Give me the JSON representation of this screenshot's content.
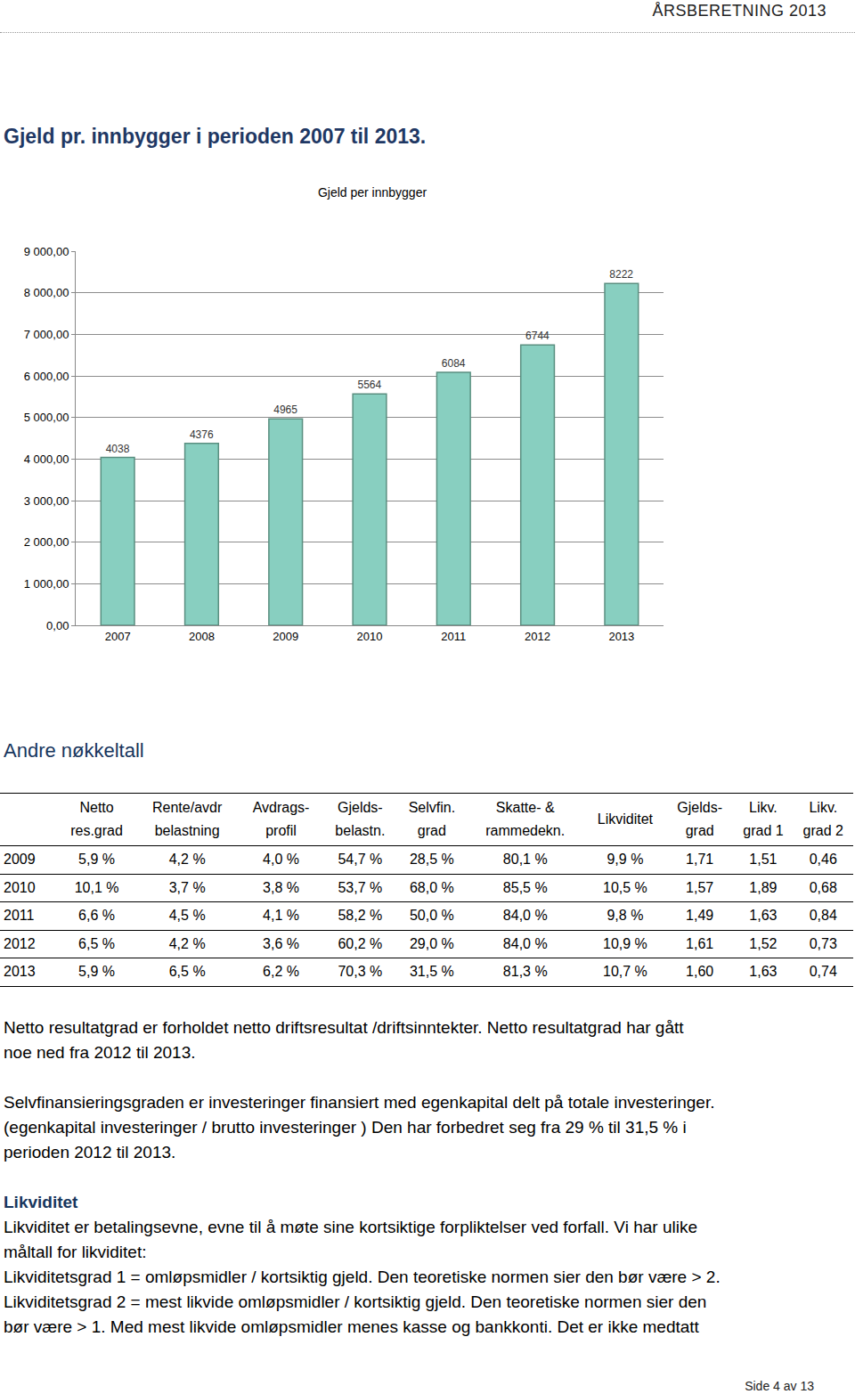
{
  "header": {
    "title": "ÅRSBERETNING 2013"
  },
  "heading": "Gjeld pr. innbygger i perioden 2007 til 2013.",
  "chart_data": {
    "type": "bar",
    "title": "Gjeld per innbygger",
    "categories": [
      "2007",
      "2008",
      "2009",
      "2010",
      "2011",
      "2012",
      "2013"
    ],
    "values": [
      4038,
      4376,
      4965,
      5564,
      6084,
      6744,
      8222
    ],
    "color": "#88cfc0",
    "ylim": [
      0,
      9000
    ],
    "yticks": [
      {
        "value": 0,
        "label": "0,00"
      },
      {
        "value": 1000,
        "label": "1 000,00"
      },
      {
        "value": 2000,
        "label": "2 000,00"
      },
      {
        "value": 3000,
        "label": "3 000,00"
      },
      {
        "value": 4000,
        "label": "4 000,00"
      },
      {
        "value": 5000,
        "label": "5 000,00"
      },
      {
        "value": 6000,
        "label": "6 000,00"
      },
      {
        "value": 7000,
        "label": "7 000,00"
      },
      {
        "value": 8000,
        "label": "8 000,00"
      },
      {
        "value": 9000,
        "label": "9 000,00"
      }
    ],
    "grid": true,
    "data_labels": true
  },
  "section": "Andre nøkkeltall",
  "table": {
    "columns": [
      [
        "Netto",
        "res.grad"
      ],
      [
        "Rente/avdr",
        "belastning"
      ],
      [
        "Avdrags-",
        "profil"
      ],
      [
        "Gjelds-",
        "belastn."
      ],
      [
        "Selvfin.",
        "grad"
      ],
      [
        "Skatte- &",
        "rammedekn."
      ],
      [
        "Likviditet"
      ],
      [
        "Gjelds-",
        "grad"
      ],
      [
        "Likv.",
        "grad 1"
      ],
      [
        "Likv.",
        "grad 2"
      ]
    ],
    "rows": [
      [
        "2009",
        "5,9 %",
        "4,2 %",
        "4,0 %",
        "54,7 %",
        "28,5 %",
        "80,1 %",
        "9,9 %",
        "1,71",
        "1,51",
        "0,46"
      ],
      [
        "2010",
        "10,1 %",
        "3,7 %",
        "3,8 %",
        "53,7 %",
        "68,0 %",
        "85,5 %",
        "10,5 %",
        "1,57",
        "1,89",
        "0,68"
      ],
      [
        "2011",
        "6,6 %",
        "4,5 %",
        "4,1 %",
        "58,2 %",
        "50,0 %",
        "84,0 %",
        "9,8 %",
        "1,49",
        "1,63",
        "0,84"
      ],
      [
        "2012",
        "6,5 %",
        "4,2 %",
        "3,6 %",
        "60,2 %",
        "29,0 %",
        "84,0 %",
        "10,9 %",
        "1,61",
        "1,52",
        "0,73"
      ],
      [
        "2013",
        "5,9 %",
        "6,5 %",
        "6,2 %",
        "70,3 %",
        "31,5 %",
        "81,3 %",
        "10,7 %",
        "1,60",
        "1,63",
        "0,74"
      ]
    ]
  },
  "paragraphs": [
    {
      "style": "text",
      "lines": [
        "Netto resultatgrad er forholdet netto driftsresultat /driftsinntekter. Netto resultatgrad har gått",
        "noe ned fra 2012 til 2013."
      ]
    },
    {
      "style": "text",
      "lines": [
        "Selvfinansieringsgraden er investeringer finansiert med egenkapital delt på totale investeringer.",
        "(egenkapital investeringer / brutto investeringer ) Den har forbedret seg fra 29 % til 31,5 % i",
        "perioden  2012 til 2013."
      ]
    },
    {
      "style": "heading",
      "lines": [
        "Likviditet"
      ]
    },
    {
      "style": "tight",
      "lines": [
        "Likviditet er betalingsevne, evne til å møte sine kortsiktige forpliktelser ved forfall. Vi har ulike",
        "måltall for likviditet:",
        "Likviditetsgrad 1 = omløpsmidler / kortsiktig gjeld. Den teoretiske normen sier den bør være > 2.",
        "Likviditetsgrad 2 = mest likvide omløpsmidler / kortsiktig gjeld. Den teoretiske normen sier den",
        "bør være > 1. Med mest likvide omløpsmidler menes kasse og bankkonti. Det er ikke medtatt"
      ]
    }
  ],
  "footer": "Side 4 av 13"
}
